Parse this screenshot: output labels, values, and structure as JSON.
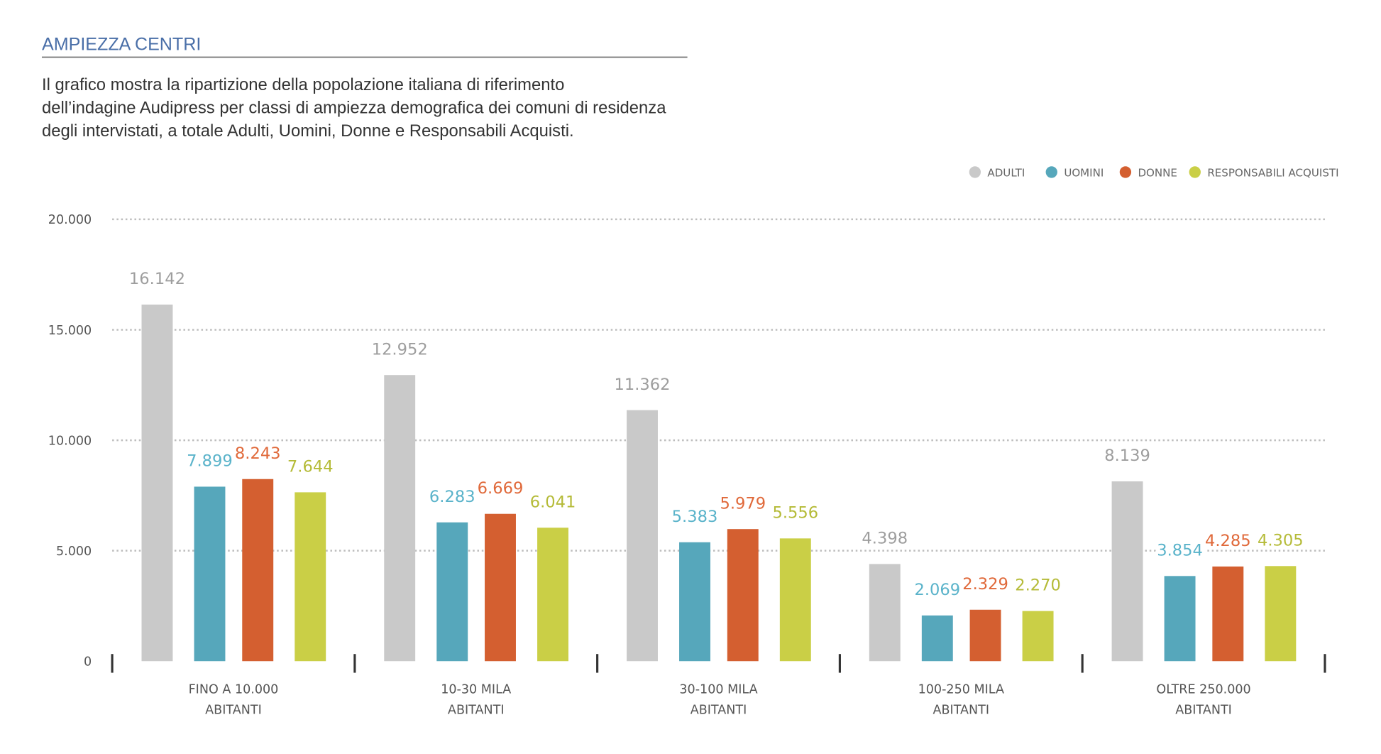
{
  "header": {
    "title": "AMPIEZZA CENTRI",
    "description_lines": [
      "Il grafico mostra la ripartizione della popolazione italiana di riferimento",
      "dell’indagine Audipress per classi di ampiezza demografica dei comuni di residenza",
      "degli intervistati, a totale Adulti, Uomini, Donne e Responsabili Acquisti."
    ]
  },
  "chart_data": {
    "type": "bar",
    "title": "AMPIEZZA CENTRI",
    "xlabel": "",
    "ylabel": "",
    "ylim": [
      0,
      20000
    ],
    "yticks": [
      0,
      5000,
      10000,
      15000,
      20000
    ],
    "ytick_labels": [
      "0",
      "5.000",
      "10.000",
      "15.000",
      "20.000"
    ],
    "grid": true,
    "legend_position": "top-right",
    "categories": [
      [
        "FINO A 10.000",
        "ABITANTI"
      ],
      [
        "10-30 MILA",
        "ABITANTI"
      ],
      [
        "30-100 MILA",
        "ABITANTI"
      ],
      [
        "100-250 MILA",
        "ABITANTI"
      ],
      [
        "OLTRE 250.000",
        "ABITANTI"
      ]
    ],
    "series": [
      {
        "name": "ADULTI",
        "color": "#c9c9c9",
        "label_color": "#9e9e9e",
        "values": [
          16142,
          12952,
          11362,
          4398,
          8139
        ],
        "labels": [
          "16.142",
          "12.952",
          "11.362",
          "4.398",
          "8.139"
        ]
      },
      {
        "name": "UOMINI",
        "color": "#56a7bb",
        "label_color": "#5ab3ca",
        "values": [
          7899,
          6283,
          5383,
          2069,
          3854
        ],
        "labels": [
          "7.899",
          "6.283",
          "5.383",
          "2.069",
          "3.854"
        ]
      },
      {
        "name": "DONNE",
        "color": "#d45f30",
        "label_color": "#e0693a",
        "values": [
          8243,
          6669,
          5979,
          2329,
          4285
        ],
        "labels": [
          "8.243",
          "6.669",
          "5.979",
          "2.329",
          "4.285"
        ]
      },
      {
        "name": "RESPONSABILI ACQUISTI",
        "color": "#cacf46",
        "label_color": "#b5bb38",
        "values": [
          7644,
          6041,
          5556,
          2270,
          4305
        ],
        "labels": [
          "7.644",
          "6.041",
          "5.556",
          "2.270",
          "4.305"
        ]
      }
    ]
  }
}
